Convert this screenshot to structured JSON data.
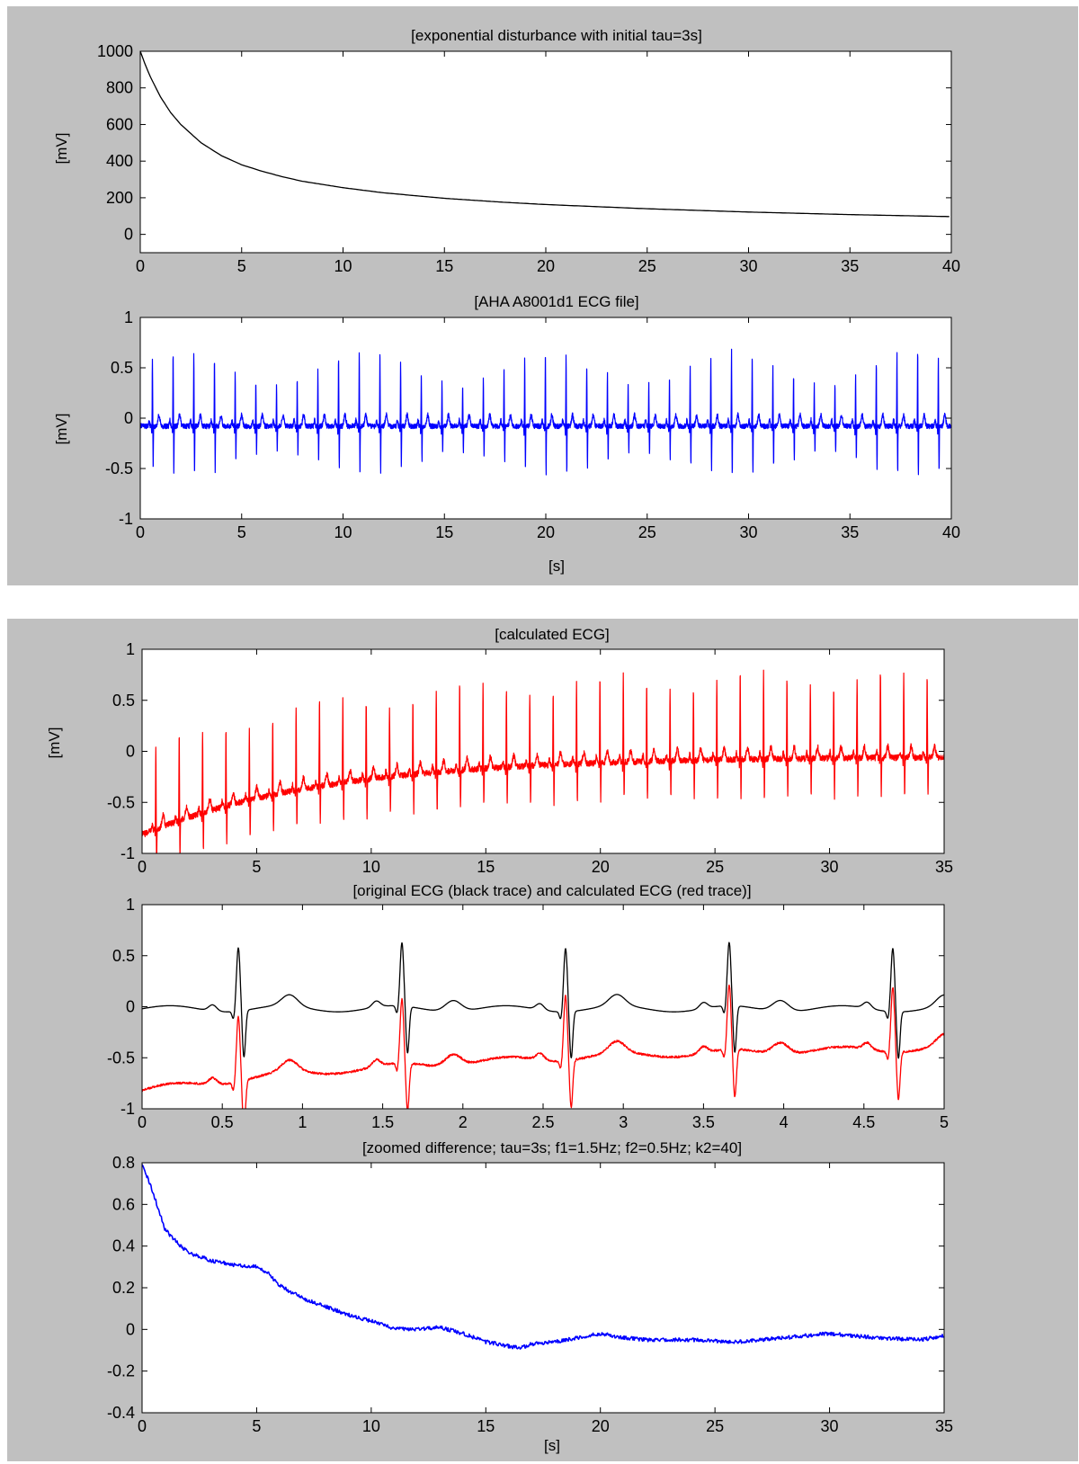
{
  "chart_data": [
    {
      "type": "line",
      "title": "[exponential disturbance with initial tau=3s]",
      "xlabel": "",
      "ylabel": "[mV]",
      "xlim": [
        0,
        40
      ],
      "ylim": [
        -100,
        1000
      ],
      "xticks": [
        "0",
        "5",
        "10",
        "15",
        "20",
        "25",
        "30",
        "35",
        "40"
      ],
      "yticks": [
        "0",
        "200",
        "400",
        "600",
        "800",
        "1000"
      ],
      "grid": false,
      "series": [
        {
          "color": "#000000",
          "x": [
            0,
            0.25,
            0.5,
            1,
            1.5,
            2,
            3,
            4,
            5,
            6,
            7,
            8,
            10,
            12,
            15,
            18,
            20,
            25,
            30,
            35,
            40
          ],
          "values": [
            1000,
            925,
            860,
            750,
            665,
            600,
            500,
            430,
            380,
            345,
            315,
            290,
            255,
            227,
            197,
            175,
            163,
            140,
            122,
            108,
            97
          ]
        }
      ]
    },
    {
      "type": "line",
      "title": "[AHA A8001d1 ECG file]",
      "xlabel": "[s]",
      "ylabel": "[mV]",
      "xlim": [
        0,
        40
      ],
      "ylim": [
        -1,
        1
      ],
      "xticks": [
        "0",
        "5",
        "10",
        "15",
        "20",
        "25",
        "30",
        "35",
        "40"
      ],
      "yticks": [
        "-1",
        "-0.5",
        "0",
        "0.5",
        "1"
      ],
      "grid": false,
      "beat_interval_s": 1.02,
      "first_beat_s": 0.6,
      "series": [
        {
          "color": "#0000ff",
          "r_peak_mV": 0.6,
          "s_trough_mV": -0.45,
          "baseline_mV": -0.08
        }
      ]
    },
    {
      "type": "line",
      "title": "[calculated ECG]",
      "xlabel": "",
      "ylabel": "[mV]",
      "xlim": [
        0,
        35
      ],
      "ylim": [
        -1,
        1
      ],
      "xticks": [
        "0",
        "5",
        "10",
        "15",
        "20",
        "25",
        "30",
        "35"
      ],
      "yticks": [
        "-1",
        "-0.5",
        "0",
        "0.5",
        "1"
      ],
      "grid": false,
      "beat_interval_s": 1.02,
      "first_beat_s": 0.6,
      "series": [
        {
          "color": "#ff0000",
          "r_peak_mV_start": 0.05,
          "r_peak_mV_end": 0.65,
          "baseline_mV_start": -0.82,
          "baseline_mV_end": -0.05
        }
      ]
    },
    {
      "type": "line",
      "title": "[original ECG (black trace) and calculated ECG (red trace)]",
      "xlabel": "",
      "ylabel": "",
      "xlim": [
        0,
        5
      ],
      "ylim": [
        -1,
        1
      ],
      "xticks": [
        "0",
        "0.5",
        "1",
        "1.5",
        "2",
        "2.5",
        "3",
        "3.5",
        "4",
        "4.5",
        "5"
      ],
      "yticks": [
        "-1",
        "-0.5",
        "0",
        "0.5",
        "1"
      ],
      "grid": false,
      "beat_times_s": [
        0.6,
        1.62,
        2.64,
        3.66,
        4.68
      ],
      "series": [
        {
          "color": "#000000",
          "baseline_mV": -0.02,
          "r_peak_mV": 0.6,
          "s_trough_mV": -0.48
        },
        {
          "color": "#ff0000",
          "baseline_mV_start": -0.82,
          "baseline_mV_end": -0.36,
          "r_peak_mV": 0.35,
          "s_trough_mV": -0.85
        }
      ]
    },
    {
      "type": "line",
      "title": "[zoomed difference; tau=3s; f1=1.5Hz; f2=0.5Hz; k2=40]",
      "xlabel": "[s]",
      "ylabel": "",
      "xlim": [
        0,
        35
      ],
      "ylim": [
        -0.4,
        0.8
      ],
      "xticks": [
        "0",
        "5",
        "10",
        "15",
        "20",
        "25",
        "30",
        "35"
      ],
      "yticks": [
        "-0.4",
        "-0.2",
        "0",
        "0.2",
        "0.4",
        "0.6",
        "0.8"
      ],
      "grid": false,
      "series": [
        {
          "color": "#0000ff",
          "x": [
            0,
            0.5,
            1,
            1.5,
            2,
            3,
            4,
            5,
            5.5,
            6,
            7,
            8,
            9,
            10,
            11,
            12,
            13,
            14,
            15,
            16,
            16.5,
            17,
            18,
            19,
            20,
            21,
            22,
            24,
            26,
            28,
            30,
            32,
            34,
            35
          ],
          "values": [
            0.8,
            0.65,
            0.48,
            0.42,
            0.37,
            0.33,
            0.31,
            0.3,
            0.27,
            0.21,
            0.15,
            0.11,
            0.07,
            0.04,
            0.005,
            0.0,
            0.01,
            -0.02,
            -0.06,
            -0.08,
            -0.09,
            -0.07,
            -0.06,
            -0.04,
            -0.02,
            -0.04,
            -0.05,
            -0.05,
            -0.06,
            -0.04,
            -0.02,
            -0.04,
            -0.05,
            -0.03
          ]
        }
      ]
    }
  ]
}
